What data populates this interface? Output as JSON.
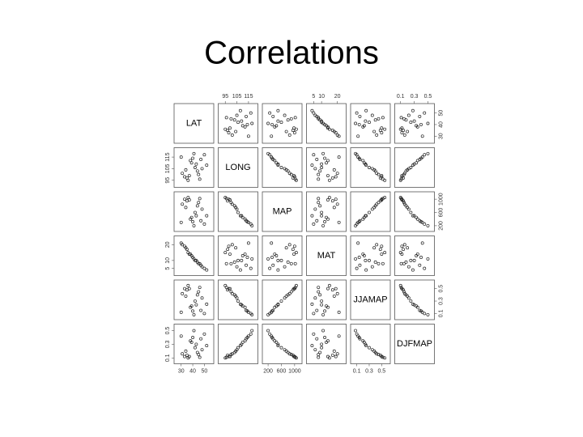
{
  "chart_data": {
    "type": "scatter_matrix",
    "title": "Correlations",
    "point_color": "#222222",
    "variables": [
      {
        "name": "LAT",
        "lim": [
          26,
          56
        ],
        "ticks": [
          30,
          40,
          50
        ],
        "values": [
          45,
          38,
          33,
          48,
          41,
          36,
          52,
          30,
          44,
          39,
          35,
          47,
          42,
          31,
          50,
          37,
          43,
          34,
          40,
          46
        ]
      },
      {
        "name": "LONG",
        "lim": [
          91,
          121
        ],
        "ticks": [
          95,
          105,
          115
        ],
        "values": [
          100,
          112,
          98,
          105,
          118,
          95,
          108,
          115,
          103,
          110,
          97,
          113,
          106,
          101,
          117,
          99,
          109,
          104,
          114,
          96
        ]
      },
      {
        "name": "MAP",
        "lim": [
          100,
          1150
        ],
        "ticks": [
          200,
          600,
          1000
        ],
        "values": [
          900,
          400,
          1000,
          700,
          200,
          1050,
          500,
          300,
          800,
          450,
          950,
          350,
          600,
          850,
          250,
          980,
          500,
          750,
          320,
          1020
        ]
      },
      {
        "name": "MAT",
        "lim": [
          2,
          24
        ],
        "ticks": [
          5,
          10,
          20
        ],
        "values": [
          8,
          14,
          19,
          6,
          11,
          15,
          4,
          21,
          9,
          13,
          17,
          7,
          10,
          20,
          5,
          14,
          10,
          18,
          12,
          8
        ]
      },
      {
        "name": "JJAMAP",
        "lim": [
          0.04,
          0.6
        ],
        "ticks": [
          0.1,
          0.3,
          0.5
        ],
        "values": [
          0.45,
          0.2,
          0.5,
          0.35,
          0.08,
          0.55,
          0.25,
          0.12,
          0.4,
          0.22,
          0.48,
          0.15,
          0.3,
          0.42,
          0.1,
          0.5,
          0.24,
          0.38,
          0.14,
          0.52
        ]
      },
      {
        "name": "DJFMAP",
        "lim": [
          0.05,
          0.56
        ],
        "ticks": [
          0.1,
          0.3,
          0.5
        ],
        "values": [
          0.15,
          0.35,
          0.12,
          0.22,
          0.5,
          0.1,
          0.28,
          0.42,
          0.18,
          0.33,
          0.14,
          0.38,
          0.25,
          0.16,
          0.45,
          0.12,
          0.3,
          0.2,
          0.4,
          0.11
        ]
      }
    ]
  }
}
